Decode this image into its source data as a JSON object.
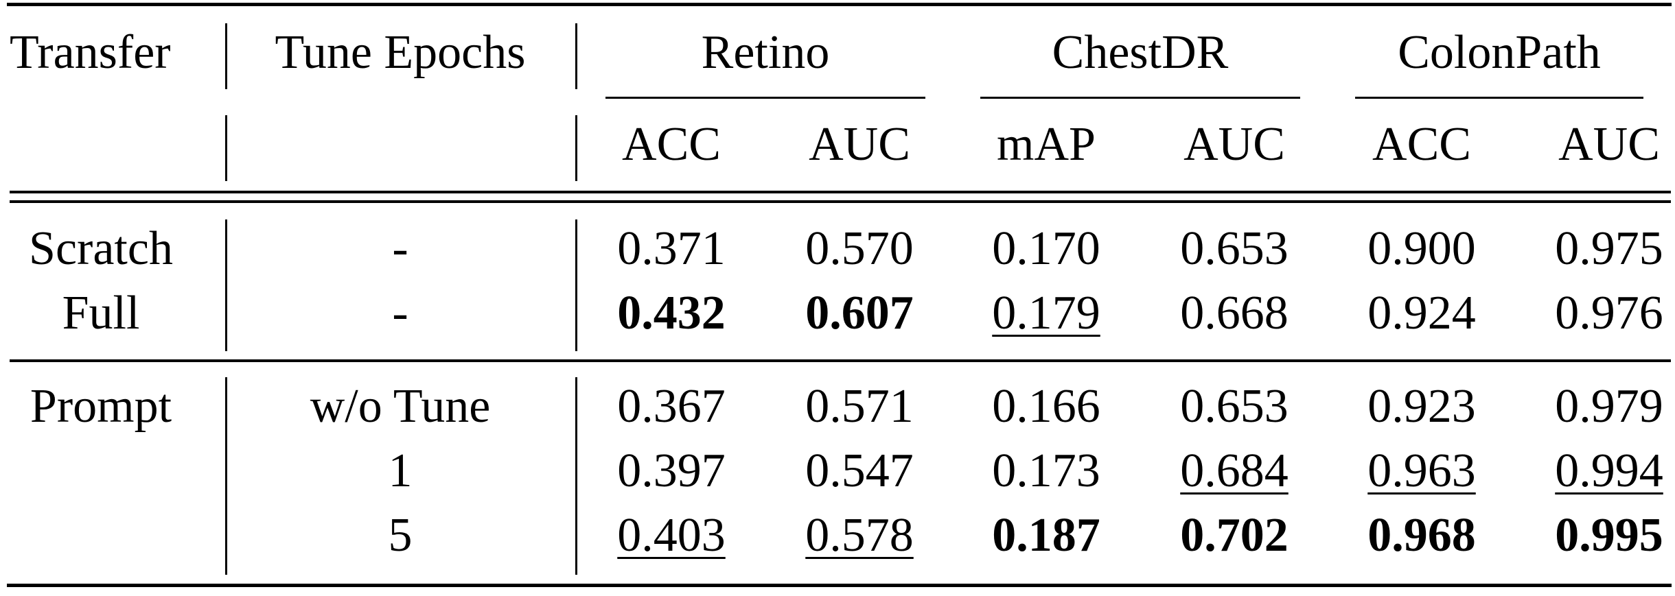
{
  "table": {
    "headers": {
      "transfer": "Transfer",
      "tune_epochs": "Tune Epochs",
      "groups": [
        "Retino",
        "ChestDR",
        "ColonPath"
      ],
      "metrics": [
        "ACC",
        "AUC",
        "mAP",
        "AUC",
        "ACC",
        "AUC"
      ]
    },
    "rows": [
      {
        "transfer": "Scratch",
        "tune": "-",
        "values": [
          "0.371",
          "0.570",
          "0.170",
          "0.653",
          "0.900",
          "0.975"
        ],
        "bold": [
          false,
          false,
          false,
          false,
          false,
          false
        ],
        "underline": [
          false,
          false,
          false,
          false,
          false,
          false
        ]
      },
      {
        "transfer": "Full",
        "tune": "-",
        "values": [
          "0.432",
          "0.607",
          "0.179",
          "0.668",
          "0.924",
          "0.976"
        ],
        "bold": [
          true,
          true,
          false,
          false,
          false,
          false
        ],
        "underline": [
          false,
          false,
          true,
          false,
          false,
          false
        ]
      },
      {
        "transfer": "Prompt",
        "tune": "w/o Tune",
        "values": [
          "0.367",
          "0.571",
          "0.166",
          "0.653",
          "0.923",
          "0.979"
        ],
        "bold": [
          false,
          false,
          false,
          false,
          false,
          false
        ],
        "underline": [
          false,
          false,
          false,
          false,
          false,
          false
        ]
      },
      {
        "transfer": "",
        "tune": "1",
        "values": [
          "0.397",
          "0.547",
          "0.173",
          "0.684",
          "0.963",
          "0.994"
        ],
        "bold": [
          false,
          false,
          false,
          false,
          false,
          false
        ],
        "underline": [
          false,
          false,
          false,
          true,
          true,
          true
        ]
      },
      {
        "transfer": "",
        "tune": "5",
        "values": [
          "0.403",
          "0.578",
          "0.187",
          "0.702",
          "0.968",
          "0.995"
        ],
        "bold": [
          false,
          false,
          true,
          true,
          true,
          true
        ],
        "underline": [
          true,
          true,
          false,
          false,
          false,
          false
        ]
      }
    ]
  }
}
